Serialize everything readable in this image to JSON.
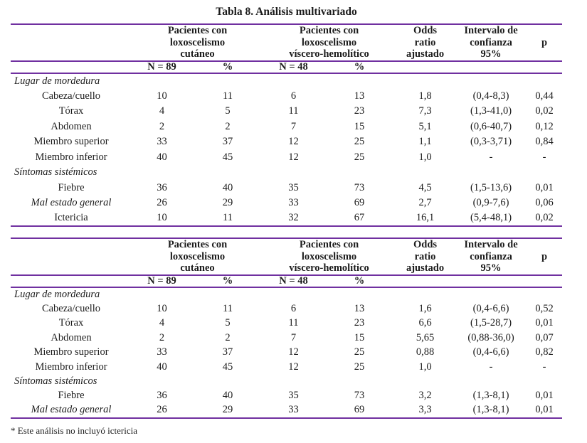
{
  "title": "Tabla 8. Análisis multivariado",
  "footnote": "* Este análisis no incluyó ictericia",
  "colors": {
    "rule": "#7030A0",
    "text": "#1c1c1c"
  },
  "header": {
    "group1": "Pacientes con\nloxoscelismo\ncutáneo",
    "group2": "Pacientes con\nloxoscelismo\nvíscero-hemolítico",
    "odds_ratio": "Odds\nratio\najustado",
    "confidence_interval": "Intervalo de\nconfianza\n95%",
    "p": "p",
    "n1": "N = 89",
    "pct1": "%",
    "n2": "N = 48",
    "pct2": "%"
  },
  "tables": [
    {
      "name": "analisis-multivariado-tabla-superior",
      "rows": [
        {
          "section": "Lugar de mordedura"
        },
        {
          "label": "Cabeza/cuello",
          "values": [
            "10",
            "11",
            "6",
            "13",
            "1,8",
            "(0,4-8,3)",
            "0,44"
          ]
        },
        {
          "label": "Tórax",
          "values": [
            "4",
            "5",
            "11",
            "23",
            "7,3",
            "(1,3-41,0)",
            "0,02"
          ]
        },
        {
          "label": "Abdomen",
          "values": [
            "2",
            "2",
            "7",
            "15",
            "5,1",
            "(0,6-40,7)",
            "0,12"
          ]
        },
        {
          "label": "Miembro superior",
          "values": [
            "33",
            "37",
            "12",
            "25",
            "1,1",
            "(0,3-3,71)",
            "0,84"
          ]
        },
        {
          "label": "Miembro inferior",
          "values": [
            "40",
            "45",
            "12",
            "25",
            "1,0",
            "-",
            "-"
          ]
        },
        {
          "section": "Síntomas sistémicos"
        },
        {
          "label": "Fiebre",
          "values": [
            "36",
            "40",
            "35",
            "73",
            "4,5",
            "(1,5-13,6)",
            "0,01"
          ]
        },
        {
          "label": "Mal estado general",
          "italic": true,
          "values": [
            "26",
            "29",
            "33",
            "69",
            "2,7",
            "(0,9-7,6)",
            "0,06"
          ]
        },
        {
          "label": "Ictericia",
          "values": [
            "10",
            "11",
            "32",
            "67",
            "16,1",
            "(5,4-48,1)",
            "0,02"
          ]
        }
      ]
    },
    {
      "name": "analisis-multivariado-tabla-inferior",
      "rows": [
        {
          "section": "Lugar de mordedura"
        },
        {
          "label": "Cabeza/cuello",
          "values": [
            "10",
            "11",
            "6",
            "13",
            "1,6",
            "(0,4-6,6)",
            "0,52"
          ]
        },
        {
          "label": "Tórax",
          "values": [
            "4",
            "5",
            "11",
            "23",
            "6,6",
            "(1,5-28,7)",
            "0,01"
          ]
        },
        {
          "label": "Abdomen",
          "values": [
            "2",
            "2",
            "7",
            "15",
            "5,65",
            "(0,88-36,0)",
            "0,07"
          ]
        },
        {
          "label": "Miembro superior",
          "values": [
            "33",
            "37",
            "12",
            "25",
            "0,88",
            "(0,4-6,6)",
            "0,82"
          ]
        },
        {
          "label": "Miembro inferior",
          "values": [
            "40",
            "45",
            "12",
            "25",
            "1,0",
            "-",
            "-"
          ]
        },
        {
          "section": "Síntomas sistémicos"
        },
        {
          "label": "Fiebre",
          "values": [
            "36",
            "40",
            "35",
            "73",
            "3,2",
            "(1,3-8,1)",
            "0,01"
          ]
        },
        {
          "label": "Mal estado general",
          "italic": true,
          "values": [
            "26",
            "29",
            "33",
            "69",
            "3,3",
            "(1,3-8,1)",
            "0,01"
          ]
        }
      ]
    }
  ]
}
